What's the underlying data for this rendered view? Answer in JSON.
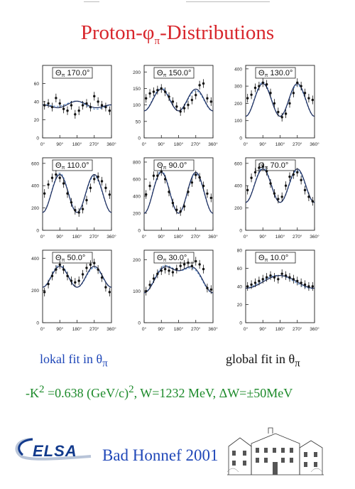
{
  "title": {
    "main": "Proton-φ",
    "sub": "π",
    "tail": "-Distributions"
  },
  "labels": {
    "lokal": "lokal fit in θ",
    "lokal_sub": "π",
    "global": "global fit in θ",
    "global_sub": "π",
    "kinematics_pre": "-K",
    "kinematics_sup1": "2",
    "kinematics_mid": " =0.638 (GeV/c)",
    "kinematics_sup2": "2",
    "kinematics_post": ", W=1232 MeV,  ΔW=±50MeV",
    "conference": "Bad Honnef 2001",
    "logo": "ELSA"
  },
  "colors": {
    "title": "#d8262c",
    "blue": "#1f47b8",
    "green": "#1c8a2a",
    "fit_solid": "#1c2b5a",
    "fit_dashed": "#5f8fcc"
  },
  "chart_data": [
    {
      "type": "scatter",
      "theta": "170.0°",
      "ylim": [
        0,
        80
      ],
      "yticks": [
        "0",
        "20",
        "40",
        "60"
      ],
      "xticks": [
        "0°",
        "90°",
        "180°",
        "270°",
        "360°"
      ],
      "x": [
        10,
        30,
        50,
        70,
        90,
        110,
        130,
        150,
        170,
        190,
        210,
        230,
        250,
        270,
        290,
        310,
        330,
        350
      ],
      "y": [
        36,
        38,
        34,
        44,
        38,
        32,
        30,
        36,
        26,
        30,
        36,
        38,
        34,
        46,
        40,
        36,
        34,
        30
      ],
      "fit": {
        "c": 36,
        "a": -2,
        "b": -2.5
      }
    },
    {
      "type": "scatter",
      "theta": "150.0°",
      "ylim": [
        0,
        220
      ],
      "yticks": [
        "0",
        "50",
        "100",
        "150",
        "200"
      ],
      "xticks": [
        "0°",
        "90°",
        "180°",
        "270°",
        "360°"
      ],
      "x": [
        10,
        30,
        50,
        70,
        90,
        110,
        130,
        150,
        170,
        190,
        210,
        230,
        250,
        270,
        290,
        310,
        330,
        350
      ],
      "y": [
        120,
        135,
        140,
        145,
        150,
        140,
        125,
        110,
        95,
        80,
        90,
        100,
        115,
        130,
        160,
        165,
        120,
        110
      ],
      "fit": {
        "c": 115,
        "a": 0,
        "b": 33
      }
    },
    {
      "type": "scatter",
      "theta": "130.0°",
      "ylim": [
        0,
        420
      ],
      "yticks": [
        "0",
        "100",
        "200",
        "300",
        "400"
      ],
      "xticks": [
        "0°",
        "90°",
        "180°",
        "270°",
        "360°"
      ],
      "x": [
        10,
        30,
        50,
        70,
        90,
        110,
        130,
        150,
        170,
        190,
        210,
        230,
        250,
        270,
        290,
        310,
        330,
        350
      ],
      "y": [
        230,
        250,
        290,
        300,
        320,
        310,
        260,
        200,
        150,
        120,
        140,
        200,
        260,
        320,
        300,
        260,
        230,
        220
      ],
      "fit": {
        "c": 220,
        "a": 0,
        "b": 95
      }
    },
    {
      "type": "scatter",
      "theta": "110.0°",
      "ylim": [
        0,
        650
      ],
      "yticks": [
        "0",
        "200",
        "400",
        "600"
      ],
      "xticks": [
        "0°",
        "90°",
        "180°",
        "270°",
        "360°"
      ],
      "x": [
        10,
        30,
        50,
        70,
        90,
        110,
        130,
        150,
        170,
        190,
        210,
        230,
        250,
        270,
        290,
        310,
        330,
        350
      ],
      "y": [
        330,
        410,
        470,
        500,
        470,
        420,
        330,
        250,
        180,
        160,
        190,
        270,
        380,
        460,
        480,
        440,
        380,
        320
      ],
      "fit": {
        "c": 330,
        "a": 0,
        "b": 170
      }
    },
    {
      "type": "scatter",
      "theta": "90.0°",
      "ylim": [
        0,
        850
      ],
      "yticks": [
        "0",
        "200",
        "400",
        "600",
        "800"
      ],
      "xticks": [
        "0°",
        "90°",
        "180°",
        "270°",
        "360°"
      ],
      "x": [
        10,
        30,
        50,
        70,
        90,
        110,
        130,
        150,
        170,
        190,
        210,
        230,
        250,
        270,
        290,
        310,
        330,
        350
      ],
      "y": [
        420,
        520,
        640,
        640,
        690,
        600,
        450,
        320,
        240,
        220,
        280,
        450,
        560,
        650,
        620,
        520,
        430,
        380
      ],
      "fit": {
        "c": 440,
        "a": 0,
        "b": 240
      }
    },
    {
      "type": "scatter",
      "theta": "70.0°",
      "ylim": [
        0,
        650
      ],
      "yticks": [
        "0",
        "200",
        "400",
        "600"
      ],
      "xticks": [
        "0°",
        "90°",
        "180°",
        "270°",
        "360°"
      ],
      "x": [
        10,
        30,
        50,
        70,
        90,
        110,
        130,
        150,
        170,
        190,
        210,
        230,
        250,
        270,
        290,
        310,
        330,
        350
      ],
      "y": [
        360,
        470,
        520,
        560,
        570,
        530,
        420,
        330,
        280,
        300,
        400,
        480,
        500,
        520,
        450,
        360,
        300,
        260
      ],
      "fit": {
        "c": 400,
        "a": 0,
        "b": 150
      }
    },
    {
      "type": "scatter",
      "theta": "50.0°",
      "ylim": [
        0,
        450
      ],
      "yticks": [
        "0",
        "200",
        "400"
      ],
      "xticks": [
        "0°",
        "90°",
        "180°",
        "270°",
        "360°"
      ],
      "x": [
        10,
        30,
        50,
        70,
        90,
        110,
        130,
        150,
        170,
        190,
        210,
        230,
        250,
        270,
        290,
        310,
        330,
        350
      ],
      "y": [
        190,
        240,
        290,
        330,
        360,
        330,
        290,
        260,
        250,
        260,
        300,
        340,
        360,
        370,
        330,
        280,
        220,
        190
      ],
      "fit": {
        "c": 285,
        "a": 0,
        "b": 65
      }
    },
    {
      "type": "scatter",
      "theta": "30.0°",
      "ylim": [
        0,
        230
      ],
      "yticks": [
        "0",
        "100",
        "200"
      ],
      "xticks": [
        "0°",
        "90°",
        "180°",
        "270°",
        "360°"
      ],
      "x": [
        10,
        30,
        50,
        70,
        90,
        110,
        130,
        150,
        170,
        190,
        210,
        230,
        250,
        270,
        290,
        310,
        330,
        350
      ],
      "y": [
        100,
        120,
        140,
        155,
        165,
        170,
        165,
        160,
        170,
        180,
        185,
        190,
        180,
        195,
        185,
        170,
        110,
        105
      ],
      "fit": {
        "c": 150,
        "a": -35,
        "b": 20
      }
    },
    {
      "type": "scatter",
      "theta": "10.0°",
      "ylim": [
        0,
        80
      ],
      "yticks": [
        "0",
        "20",
        "40",
        "60",
        "80"
      ],
      "xticks": [
        "0°",
        "90°",
        "180°",
        "270°",
        "360°"
      ],
      "x": [
        10,
        30,
        50,
        70,
        90,
        110,
        130,
        150,
        170,
        190,
        210,
        230,
        250,
        270,
        290,
        310,
        330,
        350
      ],
      "y": [
        40,
        42,
        44,
        46,
        48,
        50,
        52,
        50,
        48,
        54,
        52,
        50,
        48,
        46,
        44,
        42,
        40,
        40
      ],
      "fit": {
        "c": 45,
        "a": -7,
        "b": 0
      }
    }
  ]
}
